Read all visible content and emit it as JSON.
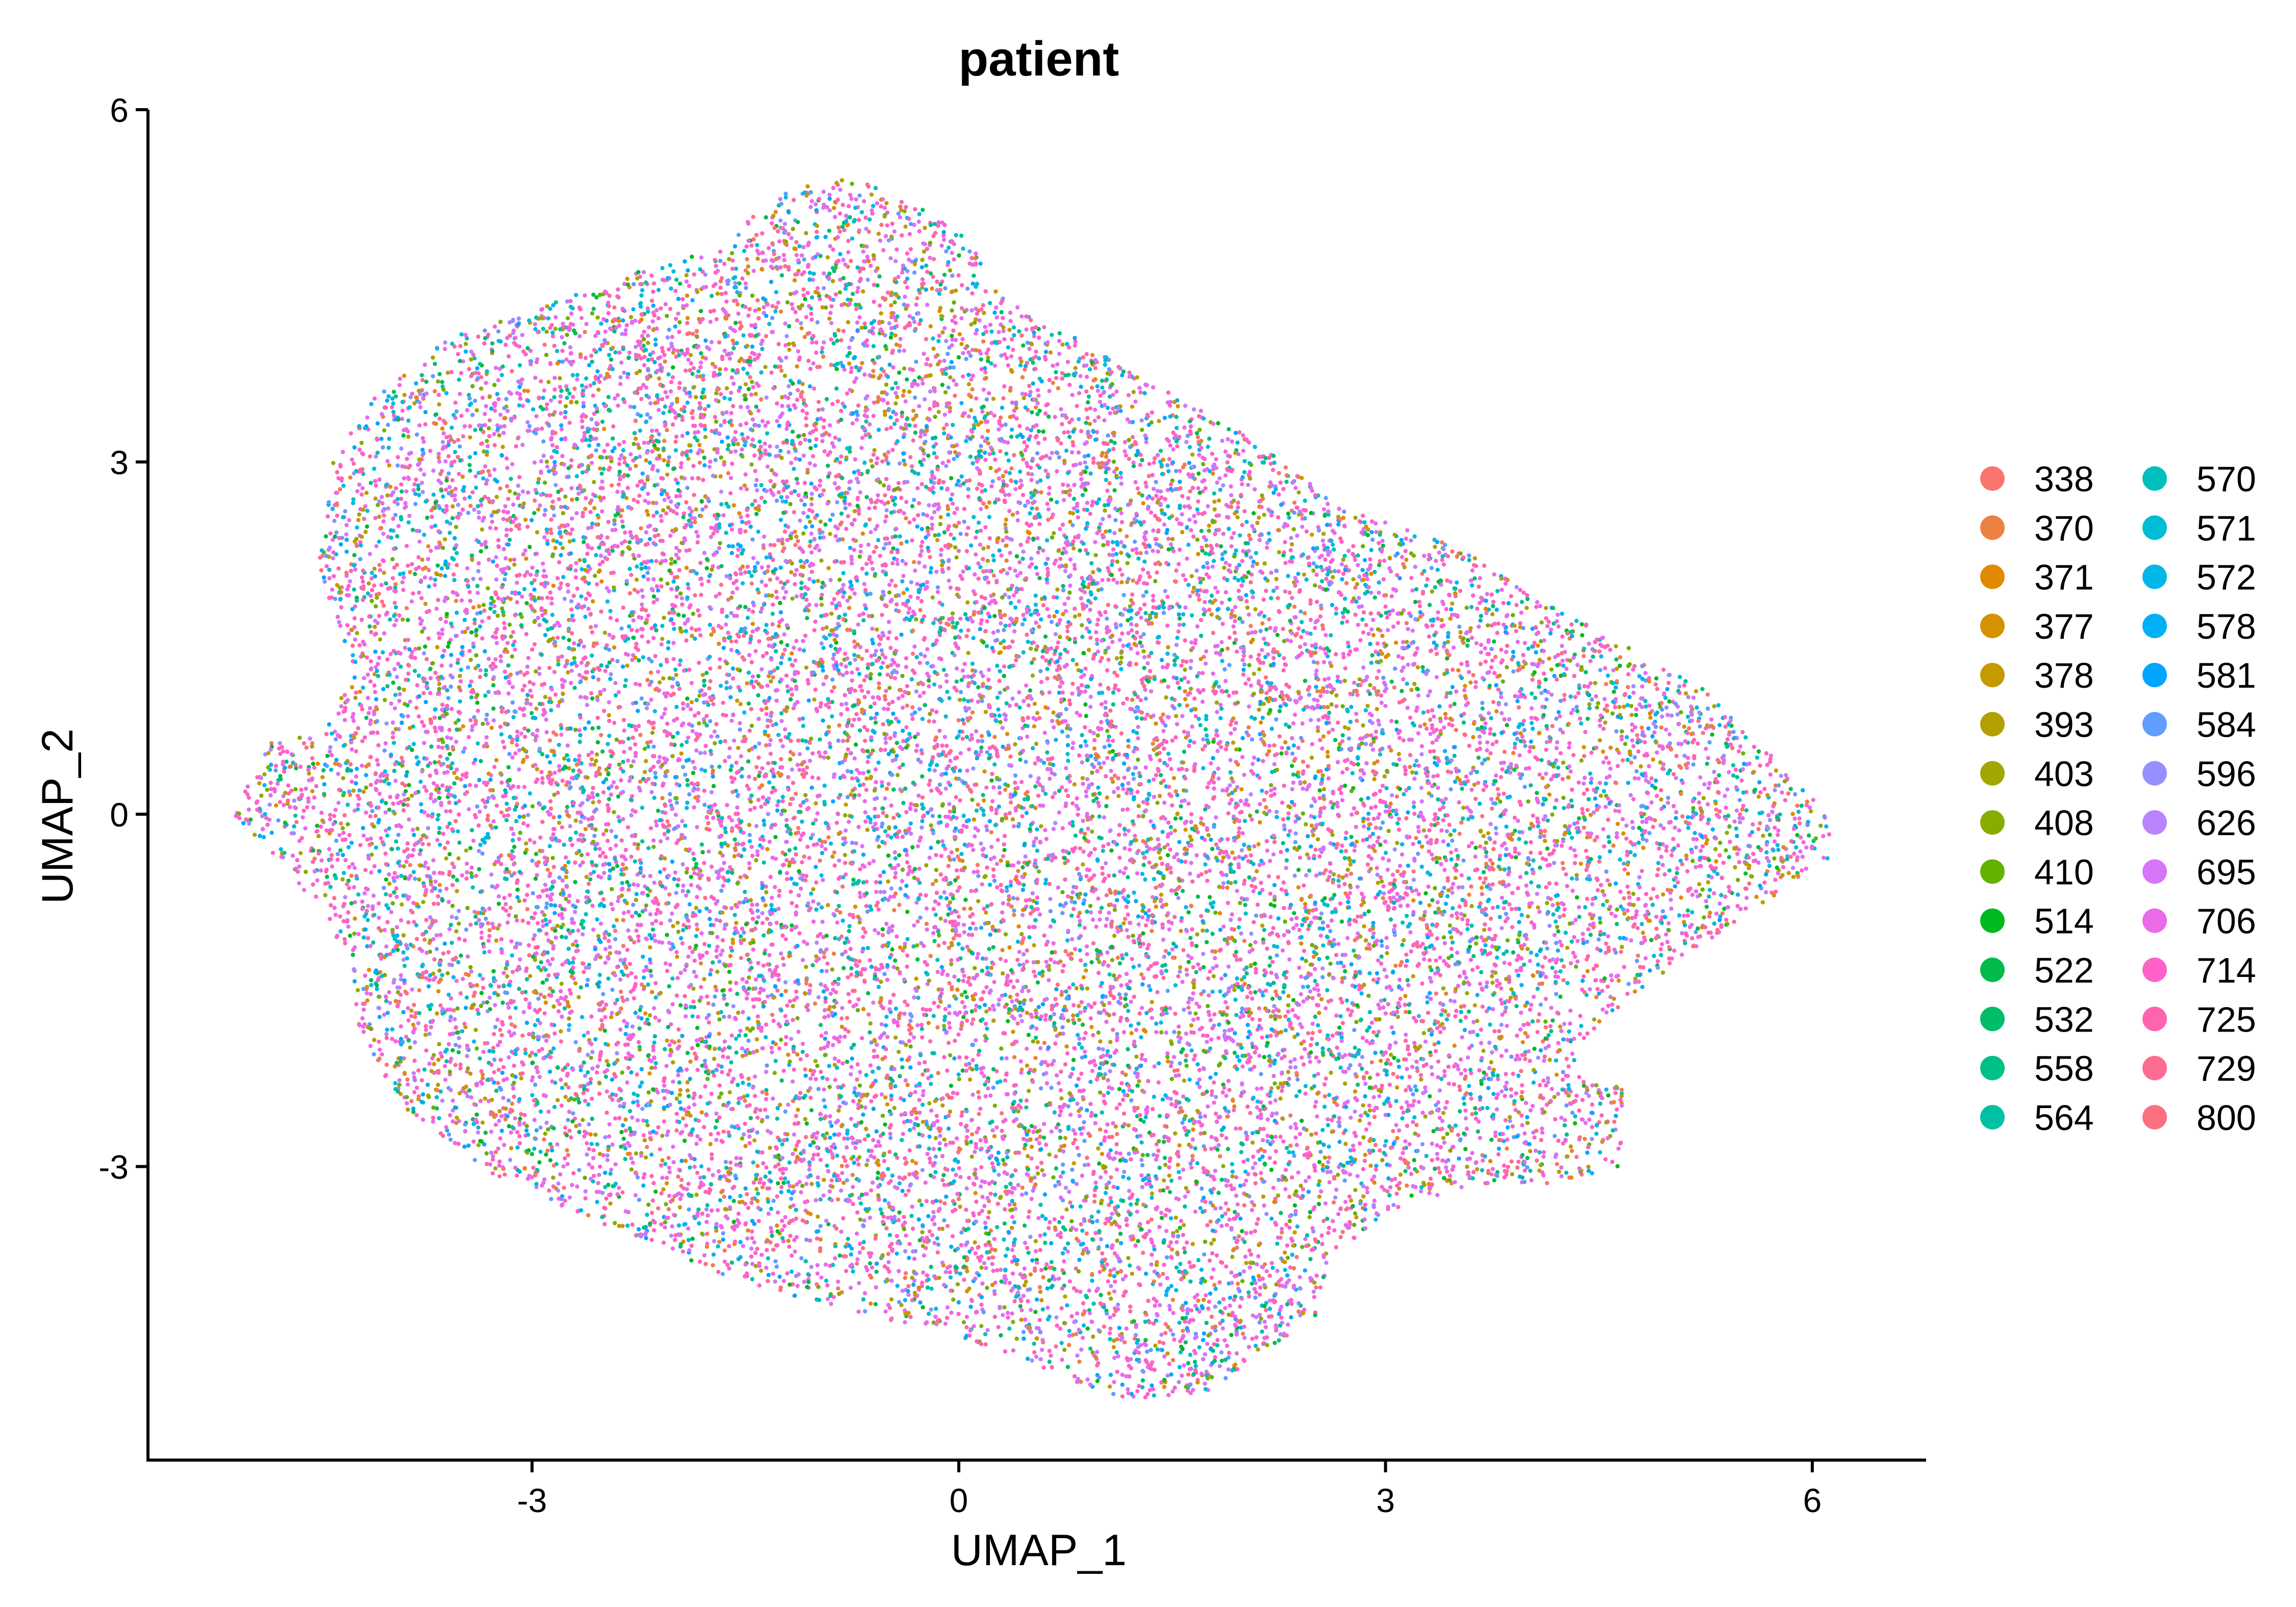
{
  "chart_data": {
    "type": "scatter",
    "title": "patient",
    "xlabel": "UMAP_1",
    "ylabel": "UMAP_2",
    "xlim": [
      -5.7,
      6.8
    ],
    "ylim": [
      -5.5,
      6.0
    ],
    "x_ticks": [
      -3,
      0,
      3,
      6
    ],
    "x_tick_labels": [
      "-3",
      "0",
      "3",
      "6"
    ],
    "y_ticks": [
      -3,
      0,
      3,
      6
    ],
    "y_tick_labels": [
      "-3",
      "0",
      "3",
      "6"
    ],
    "grid": false,
    "legend_position": "right",
    "legend_columns": 2,
    "series": [
      {
        "name": "338",
        "color": "#F8766D"
      },
      {
        "name": "370",
        "color": "#ED8141"
      },
      {
        "name": "371",
        "color": "#E18A00"
      },
      {
        "name": "377",
        "color": "#D49200"
      },
      {
        "name": "378",
        "color": "#C49A00"
      },
      {
        "name": "393",
        "color": "#B3A000"
      },
      {
        "name": "403",
        "color": "#9FA700"
      },
      {
        "name": "408",
        "color": "#86AC00"
      },
      {
        "name": "410",
        "color": "#64B200"
      },
      {
        "name": "514",
        "color": "#00B81F"
      },
      {
        "name": "522",
        "color": "#00BA4A"
      },
      {
        "name": "532",
        "color": "#00BD6A"
      },
      {
        "name": "558",
        "color": "#00BF87"
      },
      {
        "name": "564",
        "color": "#00C0A3"
      },
      {
        "name": "570",
        "color": "#00BFBC"
      },
      {
        "name": "571",
        "color": "#00BCD5"
      },
      {
        "name": "572",
        "color": "#00B8E7"
      },
      {
        "name": "578",
        "color": "#00B0F6"
      },
      {
        "name": "581",
        "color": "#00A5FF"
      },
      {
        "name": "584",
        "color": "#619CFF"
      },
      {
        "name": "596",
        "color": "#9590FF"
      },
      {
        "name": "626",
        "color": "#B983FF"
      },
      {
        "name": "695",
        "color": "#D774F8"
      },
      {
        "name": "706",
        "color": "#EA6AE8"
      },
      {
        "name": "714",
        "color": "#FF61C9"
      },
      {
        "name": "725",
        "color": "#FF65AE"
      },
      {
        "name": "729",
        "color": "#FF6C91"
      },
      {
        "name": "800",
        "color": "#FC717F"
      }
    ],
    "point_cloud": {
      "n_points": 22000,
      "outline": [
        [
          -5.1,
          0.0
        ],
        [
          -4.85,
          0.6
        ],
        [
          -4.5,
          0.7
        ],
        [
          -4.25,
          1.2
        ],
        [
          -4.5,
          2.1
        ],
        [
          -4.4,
          3.0
        ],
        [
          -4.1,
          3.6
        ],
        [
          -3.6,
          4.05
        ],
        [
          -3.0,
          4.3
        ],
        [
          -2.3,
          4.6
        ],
        [
          -1.6,
          4.85
        ],
        [
          -1.5,
          5.05
        ],
        [
          -1.2,
          5.3
        ],
        [
          -0.8,
          5.45
        ],
        [
          -0.4,
          5.25
        ],
        [
          0.1,
          4.9
        ],
        [
          0.2,
          4.5
        ],
        [
          0.9,
          4.0
        ],
        [
          1.6,
          3.5
        ],
        [
          2.0,
          3.25
        ],
        [
          2.7,
          2.6
        ],
        [
          3.5,
          2.3
        ],
        [
          4.0,
          1.9
        ],
        [
          4.6,
          1.5
        ],
        [
          5.2,
          1.1
        ],
        [
          5.8,
          0.4
        ],
        [
          6.1,
          0.0
        ],
        [
          6.15,
          -0.35
        ],
        [
          5.6,
          -0.8
        ],
        [
          5.0,
          -1.3
        ],
        [
          4.4,
          -1.9
        ],
        [
          4.3,
          -2.2
        ],
        [
          4.7,
          -2.3
        ],
        [
          4.65,
          -3.0
        ],
        [
          4.2,
          -3.15
        ],
        [
          3.6,
          -3.15
        ],
        [
          3.0,
          -3.4
        ],
        [
          2.6,
          -3.8
        ],
        [
          2.5,
          -4.3
        ],
        [
          2.1,
          -4.6
        ],
        [
          1.85,
          -4.85
        ],
        [
          1.6,
          -5.0
        ],
        [
          1.0,
          -4.95
        ],
        [
          0.4,
          -4.6
        ],
        [
          -0.5,
          -4.3
        ],
        [
          -1.5,
          -4.0
        ],
        [
          -2.5,
          -3.5
        ],
        [
          -3.3,
          -3.05
        ],
        [
          -3.9,
          -2.5
        ],
        [
          -4.2,
          -1.9
        ],
        [
          -4.3,
          -1.2
        ],
        [
          -4.5,
          -0.8
        ],
        [
          -4.85,
          -0.3
        ]
      ]
    }
  }
}
